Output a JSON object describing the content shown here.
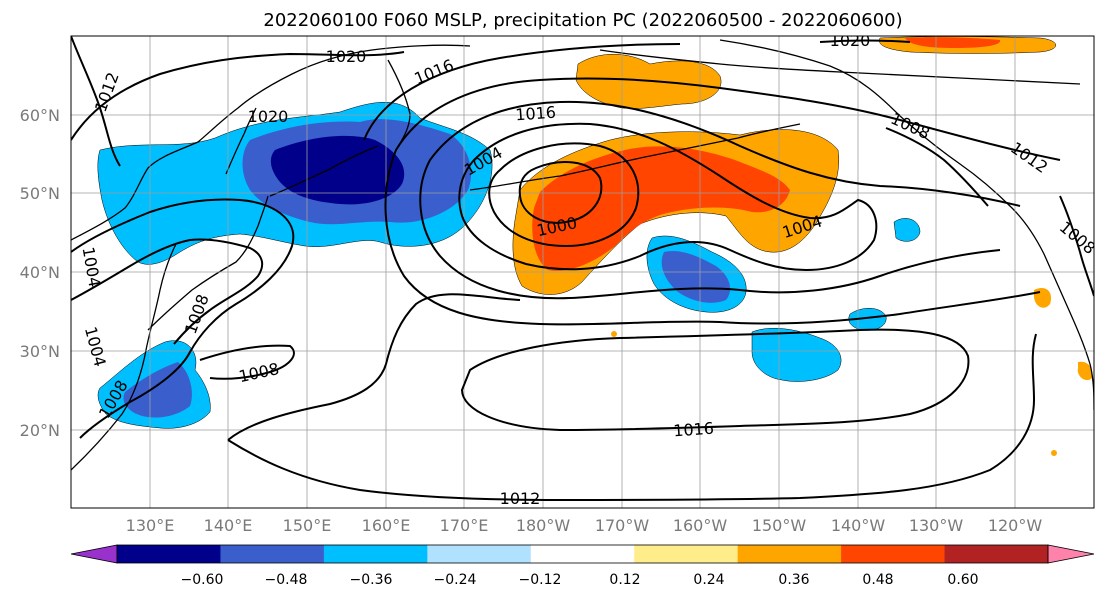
{
  "title": "2022060100 F060 MSLP, precipitation PC (2022060500 - 2022060600)",
  "map": {
    "lat_ticks": [
      "60°N",
      "50°N",
      "40°N",
      "30°N",
      "20°N"
    ],
    "lon_ticks": [
      "130°E",
      "140°E",
      "150°E",
      "160°E",
      "170°E",
      "180°W",
      "170°W",
      "160°W",
      "150°W",
      "140°W",
      "130°W",
      "120°W"
    ],
    "grid": true,
    "isobar_labels": [
      "1020",
      "1016",
      "1012",
      "1020",
      "1016",
      "1004",
      "1000",
      "1008",
      "1012",
      "1004",
      "1008",
      "1004",
      "1008",
      "1008",
      "1016",
      "1012",
      "1020",
      "1004",
      "1008"
    ]
  },
  "colorbar": {
    "tick_labels": [
      "−0.60",
      "−0.48",
      "−0.36",
      "−0.24",
      "−0.12",
      "0.12",
      "0.24",
      "0.36",
      "0.48",
      "0.60"
    ],
    "colors": [
      "#9932cc",
      "#00008b",
      "#3a5fcd",
      "#00bfff",
      "#b0e2ff",
      "#ffffff",
      "#ffec8b",
      "#ffa500",
      "#ff4500",
      "#b22222",
      "#ff82ab"
    ],
    "extend": "both"
  }
}
